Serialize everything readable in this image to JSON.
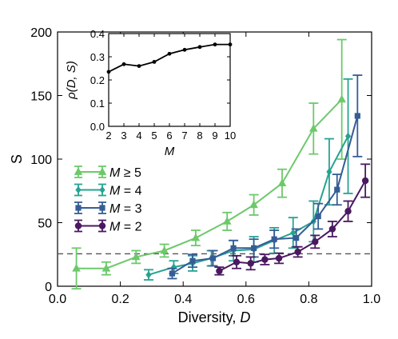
{
  "chart_data": [
    {
      "type": "line",
      "xlabel": "Diversity, ",
      "xlabel_var": "D",
      "ylabel": "S",
      "xlim": [
        0.0,
        1.0
      ],
      "ylim": [
        0,
        200
      ],
      "x_ticks": [
        "0.0",
        "0.2",
        "0.4",
        "0.6",
        "0.8",
        "1.0"
      ],
      "y_ticks": [
        "0",
        "50",
        "100",
        "150",
        "200"
      ],
      "x_tick_values": [
        0.0,
        0.2,
        0.4,
        0.6,
        0.8,
        1.0
      ],
      "y_tick_values": [
        0,
        50,
        100,
        150,
        200
      ],
      "reference_line": {
        "y": 25.5,
        "style": "dashed",
        "color": "#555555"
      },
      "legend_position": "left",
      "series": [
        {
          "name": "M ≥ 5",
          "legend_var": "M",
          "legend_rel": " ≥ 5",
          "color": "#6cc96a",
          "marker": "triangle",
          "points": [
            {
              "x": 0.06,
              "y": 14,
              "err": 16
            },
            {
              "x": 0.155,
              "y": 14,
              "err": 5
            },
            {
              "x": 0.25,
              "y": 23,
              "err": 5
            },
            {
              "x": 0.34,
              "y": 28,
              "err": 5
            },
            {
              "x": 0.44,
              "y": 38,
              "err": 6
            },
            {
              "x": 0.54,
              "y": 51,
              "err": 7
            },
            {
              "x": 0.625,
              "y": 64,
              "err": 8
            },
            {
              "x": 0.715,
              "y": 81,
              "err": 11
            },
            {
              "x": 0.815,
              "y": 124,
              "err": 20
            },
            {
              "x": 0.905,
              "y": 147,
              "err": 47
            }
          ]
        },
        {
          "name": "M = 4",
          "legend_var": "M",
          "legend_rel": " = 4",
          "color": "#26a392",
          "marker": "diamond",
          "points": [
            {
              "x": 0.29,
              "y": 9,
              "err": 4
            },
            {
              "x": 0.37,
              "y": 15,
              "err": 5
            },
            {
              "x": 0.43,
              "y": 18,
              "err": 6
            },
            {
              "x": 0.49,
              "y": 22,
              "err": 6
            },
            {
              "x": 0.56,
              "y": 28,
              "err": 8
            },
            {
              "x": 0.625,
              "y": 29,
              "err": 10
            },
            {
              "x": 0.69,
              "y": 36,
              "err": 10
            },
            {
              "x": 0.75,
              "y": 42,
              "err": 12
            },
            {
              "x": 0.815,
              "y": 51,
              "err": 16
            },
            {
              "x": 0.865,
              "y": 90,
              "err": 26
            },
            {
              "x": 0.925,
              "y": 118,
              "err": 45
            }
          ]
        },
        {
          "name": "M = 3",
          "legend_var": "M",
          "legend_rel": " = 3",
          "color": "#355d95",
          "marker": "square",
          "points": [
            {
              "x": 0.365,
              "y": 10,
              "err": 4
            },
            {
              "x": 0.43,
              "y": 20,
              "err": 5
            },
            {
              "x": 0.495,
              "y": 22,
              "err": 6
            },
            {
              "x": 0.56,
              "y": 30,
              "err": 6
            },
            {
              "x": 0.625,
              "y": 30,
              "err": 7
            },
            {
              "x": 0.69,
              "y": 37,
              "err": 7
            },
            {
              "x": 0.76,
              "y": 38,
              "err": 7
            },
            {
              "x": 0.83,
              "y": 55,
              "err": 10
            },
            {
              "x": 0.89,
              "y": 76,
              "err": 12
            },
            {
              "x": 0.955,
              "y": 134,
              "err": 32
            }
          ]
        },
        {
          "name": "M = 2",
          "legend_var": "M",
          "legend_rel": " = 2",
          "color": "#4a1860",
          "marker": "circle",
          "points": [
            {
              "x": 0.515,
              "y": 12,
              "err": 3
            },
            {
              "x": 0.57,
              "y": 19,
              "err": 5
            },
            {
              "x": 0.615,
              "y": 18,
              "err": 5
            },
            {
              "x": 0.66,
              "y": 21,
              "err": 4
            },
            {
              "x": 0.705,
              "y": 22,
              "err": 4
            },
            {
              "x": 0.765,
              "y": 27,
              "err": 4
            },
            {
              "x": 0.82,
              "y": 35,
              "err": 5
            },
            {
              "x": 0.875,
              "y": 45,
              "err": 6
            },
            {
              "x": 0.925,
              "y": 59,
              "err": 8
            },
            {
              "x": 0.98,
              "y": 83,
              "err": 13
            }
          ]
        }
      ]
    },
    {
      "type": "line",
      "xlabel": "M",
      "ylabel": "ρ(D, S)",
      "xlim": [
        2,
        10
      ],
      "ylim": [
        0.0,
        0.4
      ],
      "x_ticks": [
        "2",
        "3",
        "4",
        "5",
        "6",
        "7",
        "8",
        "9",
        "10"
      ],
      "y_ticks": [
        "0.0",
        "0.1",
        "0.2",
        "0.3",
        "0.4"
      ],
      "x_tick_values": [
        2,
        3,
        4,
        5,
        6,
        7,
        8,
        9,
        10
      ],
      "y_tick_values": [
        0.0,
        0.1,
        0.2,
        0.3,
        0.4
      ],
      "series": [
        {
          "color": "#000000",
          "x": [
            2,
            3,
            4,
            5,
            6,
            7,
            8,
            9,
            10
          ],
          "y": [
            0.235,
            0.268,
            0.26,
            0.278,
            0.313,
            0.33,
            0.342,
            0.353,
            0.353
          ]
        }
      ]
    }
  ]
}
